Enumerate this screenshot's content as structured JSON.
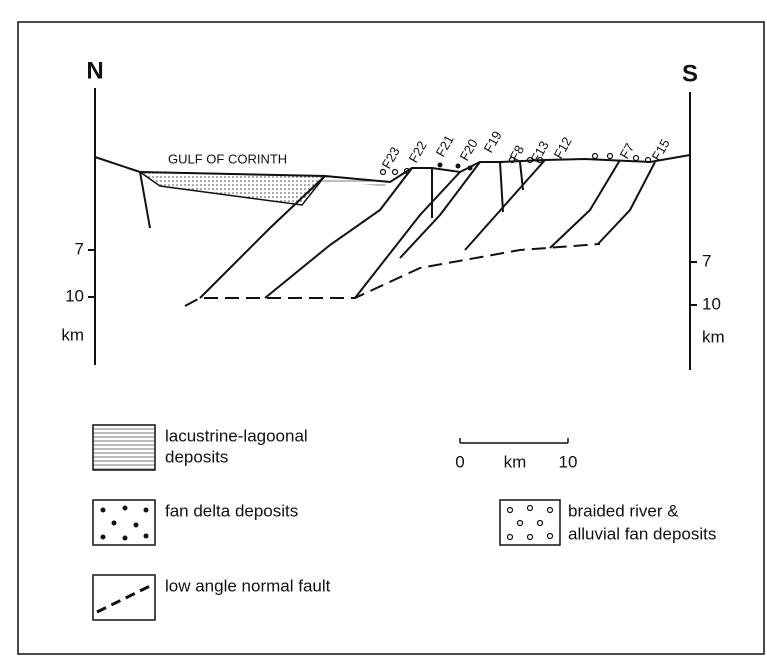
{
  "title": {
    "north": "N",
    "south": "S",
    "gulf": "GULF OF CORINTH"
  },
  "faults": [
    "F23",
    "F22",
    "F21",
    "F20",
    "F19",
    "F8",
    "F13",
    "F12",
    "F7",
    "F15"
  ],
  "left_axis": {
    "ticks": [
      "7",
      "10"
    ],
    "unit": "km"
  },
  "right_axis": {
    "ticks": [
      "7",
      "10"
    ],
    "unit": "km"
  },
  "scale_bar": {
    "start": "0",
    "unit": "km",
    "end": "10"
  },
  "legend": {
    "lacustrine": [
      "lacustrine-lagoonal",
      "deposits"
    ],
    "fan_delta": "fan delta deposits",
    "braided": [
      "braided river &",
      "alluvial fan deposits"
    ],
    "fault": "low angle normal fault"
  }
}
